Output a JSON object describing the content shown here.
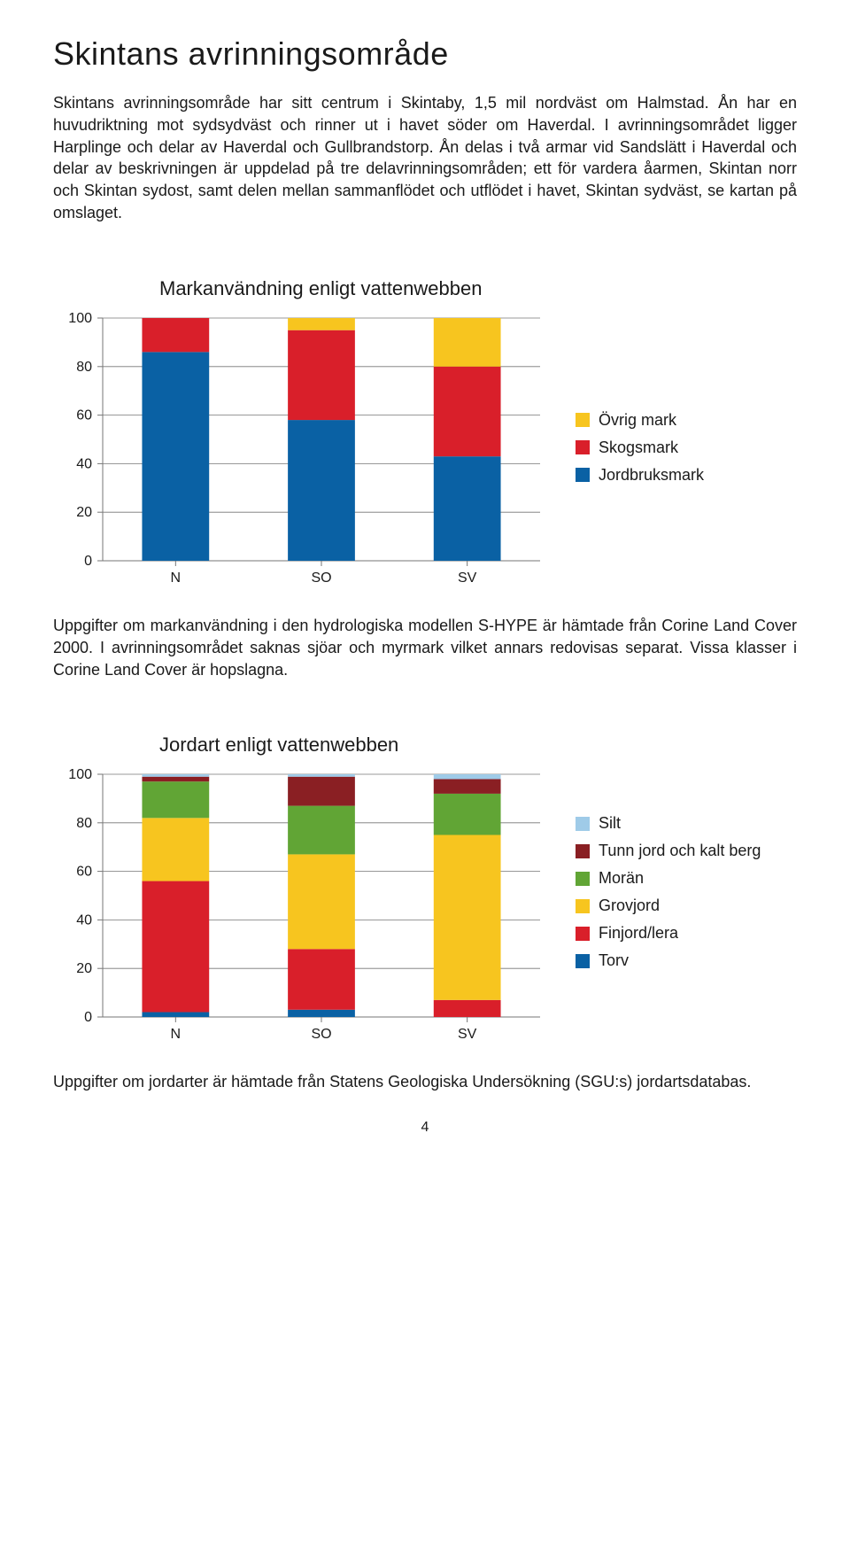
{
  "title": "Skintans avrinningsområde",
  "intro": "Skintans avrinningsområde har sitt centrum i Skintaby, 1,5 mil nordväst om Halmstad. Ån har en huvudriktning mot sydsydväst och rinner ut i havet söder om Haverdal. I avrinningsområdet ligger Harplinge och delar av Haverdal och Gullbrandstorp. Ån delas i två armar vid Sandslätt i Haverdal och delar av beskrivningen är uppdelad på tre delavrinningsområden; ett för vardera åarmen, Skintan norr och Skintan sydost, samt delen mellan sammanflödet och utflödet i havet, Skintan sydväst, se kartan på omslaget.",
  "chart1": {
    "title": "Markanvändning enligt vattenwebben",
    "type": "stacked-bar",
    "categories": [
      "N",
      "SO",
      "SV"
    ],
    "series": [
      {
        "name": "Jordbruksmark",
        "color": "#0a61a4",
        "values": [
          86,
          58,
          43
        ]
      },
      {
        "name": "Skogsmark",
        "color": "#d91f2a",
        "values": [
          14,
          37,
          37
        ]
      },
      {
        "name": "Övrig mark",
        "color": "#f7c51f",
        "values": [
          0,
          5,
          20
        ]
      }
    ],
    "legend_order": [
      "Övrig mark",
      "Skogsmark",
      "Jordbruksmark"
    ],
    "ylim": [
      0,
      100
    ],
    "ytick_step": 20,
    "bar_width": 0.46,
    "background": "#ffffff",
    "axis_color": "#767676",
    "label_fontsize": 16
  },
  "caption1": "Uppgifter om markanvändning i den hydrologiska modellen S-HYPE är hämtade från Corine Land Cover 2000. I avrinningsområdet saknas sjöar och myrmark vilket annars redovisas separat. Vissa klasser i Corine Land Cover är hopslagna.",
  "chart2": {
    "title": "Jordart enligt vattenwebben",
    "type": "stacked-bar",
    "categories": [
      "N",
      "SO",
      "SV"
    ],
    "series": [
      {
        "name": "Torv",
        "color": "#0a61a4",
        "values": [
          2,
          3,
          0
        ]
      },
      {
        "name": "Finjord/lera",
        "color": "#d91f2a",
        "values": [
          54,
          25,
          7
        ]
      },
      {
        "name": "Grovjord",
        "color": "#f7c51f",
        "values": [
          26,
          39,
          68
        ]
      },
      {
        "name": "Morän",
        "color": "#61a535",
        "values": [
          15,
          20,
          17
        ]
      },
      {
        "name": "Tunn jord och kalt berg",
        "color": "#8a1f23",
        "values": [
          2,
          12,
          6
        ]
      },
      {
        "name": "Silt",
        "color": "#9fcbe8",
        "values": [
          1,
          1,
          2
        ]
      }
    ],
    "legend_order": [
      "Silt",
      "Tunn jord och kalt berg",
      "Morän",
      "Grovjord",
      "Finjord/lera",
      "Torv"
    ],
    "ylim": [
      0,
      100
    ],
    "ytick_step": 20,
    "bar_width": 0.46,
    "background": "#ffffff",
    "axis_color": "#767676",
    "label_fontsize": 16
  },
  "caption2": "Uppgifter om jordarter är hämtade från Statens Geologiska Undersökning (SGU:s) jordartsdatabas.",
  "pagenum": "4"
}
